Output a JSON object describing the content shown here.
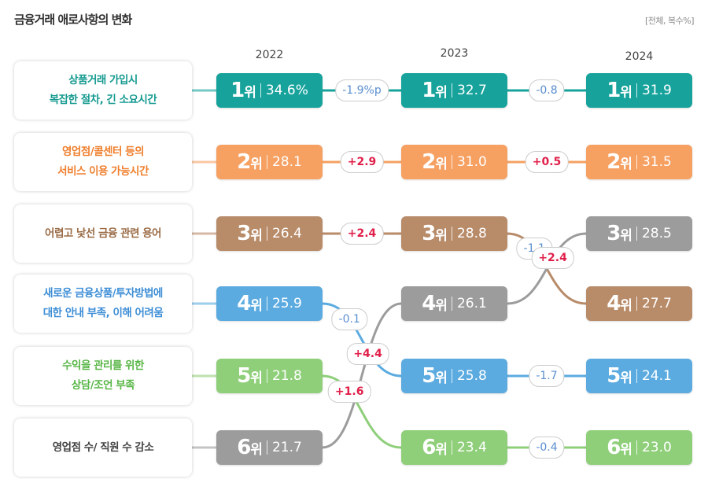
{
  "title": "금융거래 애로사항의 변화",
  "unit": "[전체, 복수%]",
  "years": [
    "2022",
    "2023",
    "2024"
  ],
  "rank_suffix": "위",
  "items": [
    {
      "label": [
        "상품거래 가입시",
        "복잡한 절차, 긴 소요시간"
      ],
      "color": "#17a39c",
      "text_color": "#159a90",
      "ranks": [
        1,
        1,
        1
      ],
      "values": [
        "34.6%",
        "32.7",
        "31.9"
      ],
      "changes": [
        "-1.9%p",
        "-0.8"
      ]
    },
    {
      "label": [
        "영업점/콜센터 등의",
        "서비스 이용 가능시간"
      ],
      "color": "#f6a062",
      "text_color": "#ef7f2e",
      "ranks": [
        2,
        2,
        2
      ],
      "values": [
        "28.1",
        "31.0",
        "31.5"
      ],
      "changes": [
        "+2.9",
        "+0.5"
      ]
    },
    {
      "label": [
        "어렵고 낯선 금융 관련 용어"
      ],
      "color": "#b88b69",
      "text_color": "#9a6b45",
      "ranks": [
        3,
        3,
        4
      ],
      "values": [
        "26.4",
        "28.8",
        "27.7"
      ],
      "changes": [
        "+2.4",
        "-1.1"
      ]
    },
    {
      "label": [
        "새로운 금융상품/투자방법에",
        "대한 안내 부족, 이해 어려움"
      ],
      "color": "#5cabe0",
      "text_color": "#3d8ed6",
      "ranks": [
        4,
        5,
        5
      ],
      "values": [
        "25.9",
        "25.8",
        "24.1"
      ],
      "changes": [
        "-0.1",
        "-1.7"
      ]
    },
    {
      "label": [
        "수익을 관리를 위한",
        "상담/조언 부족"
      ],
      "color": "#8fcf7a",
      "text_color": "#58b646",
      "ranks": [
        5,
        6,
        6
      ],
      "values": [
        "21.8",
        "23.4",
        "23.0"
      ],
      "changes": [
        "+1.6",
        "-0.4"
      ]
    },
    {
      "label": [
        "영업점 수/ 직원 수 감소"
      ],
      "color": "#9c9c9c",
      "text_color": "#444444",
      "ranks": [
        6,
        4,
        3
      ],
      "values": [
        "21.7",
        "26.1",
        "28.5"
      ],
      "changes": [
        "+4.4",
        "+2.4"
      ]
    }
  ]
}
